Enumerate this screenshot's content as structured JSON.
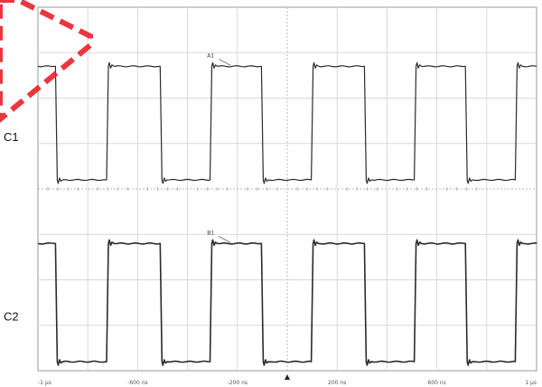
{
  "chart_data": {
    "type": "line",
    "title": "",
    "x_tick_labels": [
      "-1 µs",
      "-600 ns",
      "-200 ns",
      "200 ns",
      "600 ns",
      "1 µs"
    ],
    "x_tick_values_ns": [
      -1000,
      -600,
      -200,
      200,
      600,
      1000
    ],
    "xlim_ns": [
      -1000,
      1000
    ],
    "ylim_div": [
      -4,
      4
    ],
    "grid": true,
    "trigger_marker_ns": 0,
    "series": [
      {
        "name": "C1",
        "high_div": 2.7,
        "low_div": 0.2,
        "edges_ns": [
          -926,
          -721,
          -506,
          -306,
          -100,
          100,
          313,
          513,
          718,
          918
        ],
        "starts_high": true,
        "marker_label": "A1",
        "marker_x_ns": -300
      },
      {
        "name": "C2",
        "high_div": -1.2,
        "low_div": -3.8,
        "edges_ns": [
          -926,
          -721,
          -506,
          -306,
          -100,
          100,
          313,
          513,
          718,
          918
        ],
        "starts_high": true,
        "marker_label": "B1",
        "marker_x_ns": -300
      }
    ],
    "left_indicator_color": "#e8202a"
  }
}
